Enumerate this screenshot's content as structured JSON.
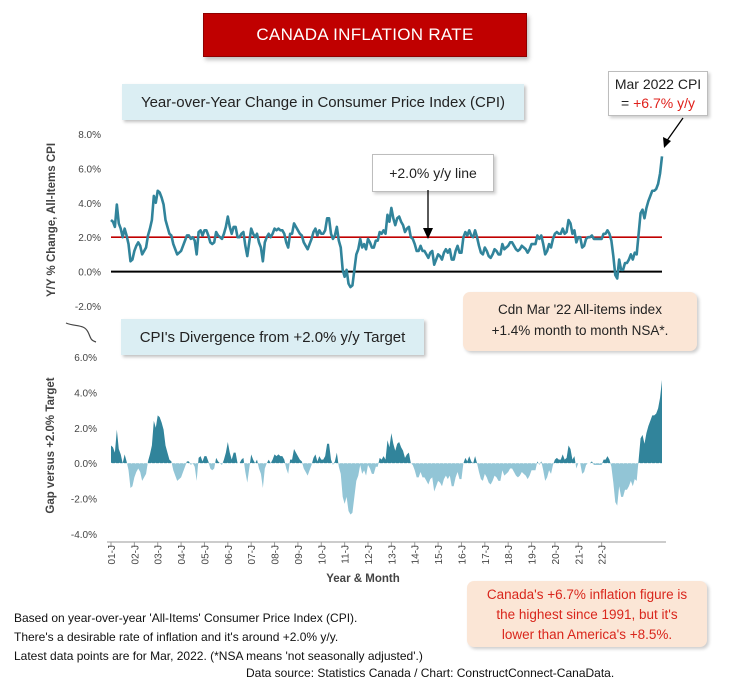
{
  "title": "CANADA INFLATION RATE",
  "top_panel_title": "Year-over-Year Change in Consumer Price Index (CPI)",
  "bottom_panel_title": "CPI's Divergence from +2.0% y/y Target",
  "callout_latest": {
    "line1": "Mar 2022 CPI",
    "prefix": "= ",
    "value": "+6.7% y/y"
  },
  "callout_line": "+2.0% y/y line",
  "note_mom": {
    "line1": "Cdn Mar '22 All-items index",
    "line2": "+1.4% month to month NSA*."
  },
  "note_highest": {
    "line1": "Canada's +6.7% inflation figure is",
    "line2": "the highest since 1991, but it's",
    "line3": "lower than America's +8.5%."
  },
  "footnotes": [
    "Based on year-over-year 'All-Items' Consumer Price Index (CPI).",
    "There's a desirable rate of inflation and it's around +2.0% y/y.",
    "Latest data points are for Mar, 2022. (*NSA means 'not seasonally adjusted'.)"
  ],
  "source": "Data source: Statistics Canada / Chart: ConstructConnect-CanaData.",
  "colors": {
    "line": "#31849b",
    "target": "#c00000",
    "fill": "#31849b",
    "fill_negative": "#92c5d6",
    "title_bg": "#c00000"
  },
  "chart_data": [
    {
      "type": "line",
      "ylabel": "Y/Y % Change, All-Items CPI",
      "ylim": [
        -2,
        8
      ],
      "yticks": [
        "-2.0%",
        "0.0%",
        "2.0%",
        "4.0%",
        "6.0%",
        "8.0%"
      ],
      "target_line": 2.0,
      "x_start": "2001-01",
      "x_end": "2022-03",
      "series": [
        {
          "values": [
            3.0,
            2.9,
            2.6,
            3.9,
            2.8,
            2.5,
            2.0,
            2.5,
            2.1,
            1.6,
            0.6,
            0.7,
            1.2,
            1.5,
            1.7,
            1.5,
            1.0,
            1.2,
            1.4,
            2.1,
            2.5,
            3.0,
            4.4,
            4.0,
            4.7,
            4.6,
            4.3,
            3.9,
            3.0,
            2.6,
            2.2,
            2.1,
            1.6,
            1.3,
            1.0,
            1.1,
            1.2,
            1.5,
            1.8,
            2.1,
            2.1,
            1.9,
            2.0,
            1.8,
            1.0,
            2.3,
            2.4,
            2.1,
            2.4,
            2.4,
            2.1,
            1.7,
            1.6,
            1.7,
            2.3,
            2.1,
            2.0,
            1.9,
            2.2,
            2.6,
            3.2,
            2.6,
            2.2,
            2.6,
            2.6,
            2.0,
            2.0,
            2.2,
            2.3,
            1.5,
            0.9,
            1.7,
            2.5,
            2.2,
            2.0,
            2.2,
            1.7,
            1.4,
            0.6,
            1.7,
            2.0,
            2.2,
            2.0,
            2.2,
            2.5,
            2.4,
            2.5,
            2.4,
            2.4,
            2.2,
            1.7,
            1.4,
            2.2,
            2.2,
            2.8,
            2.6,
            2.4,
            2.2,
            2.1,
            1.7,
            1.5,
            1.3,
            1.6,
            1.9,
            2.3,
            2.5,
            2.1,
            2.4,
            2.2,
            2.2,
            2.4,
            3.1,
            3.1,
            2.2,
            1.9,
            2.1,
            2.6,
            1.8,
            1.4,
            0.1,
            -0.3,
            0.1,
            -0.7,
            -0.9,
            -0.8,
            0.1,
            1.0,
            1.3,
            1.9,
            1.4,
            1.6,
            1.3,
            1.9,
            1.7,
            1.4,
            1.4,
            1.8,
            1.8,
            2.3,
            2.2,
            2.4,
            2.2,
            3.3,
            2.9,
            3.7,
            3.1,
            2.7,
            3.1,
            3.2,
            2.9,
            2.7,
            2.3,
            2.5,
            2.6,
            2.0,
            1.9,
            1.6,
            1.2,
            1.2,
            1.5,
            1.2,
            1.2,
            1.0,
            0.8,
            1.1,
            1.2,
            0.4,
            0.7,
            1.0,
            0.9,
            0.7,
            1.1,
            1.3,
            1.1,
            1.3,
            0.7,
            0.7,
            1.2,
            1.5,
            1.1,
            1.1,
            2.0,
            2.3,
            2.1,
            2.4,
            2.1,
            2.0,
            2.4,
            2.0,
            1.5,
            1.1,
            1.0,
            1.4,
            1.2,
            0.9,
            0.8,
            1.0,
            1.3,
            1.2,
            1.0,
            1.0,
            1.6,
            1.3,
            1.4,
            1.5,
            1.7,
            1.7,
            1.5,
            1.3,
            1.2,
            1.3,
            1.5,
            1.4,
            1.3,
            1.1,
            1.3,
            1.6,
            1.6,
            1.6,
            2.1,
            1.9,
            2.1,
            1.6,
            1.0,
            1.2,
            1.6,
            1.4,
            1.9,
            2.2,
            2.3,
            2.2,
            2.2,
            2.5,
            2.2,
            2.3,
            3.0,
            2.8,
            2.2,
            2.4,
            1.7,
            2.0,
            2.0,
            1.4,
            1.5,
            1.9,
            2.0,
            2.0,
            2.1,
            1.9,
            1.9,
            1.9,
            1.9,
            1.9,
            2.2,
            2.2,
            2.4,
            2.2,
            1.8,
            0.9,
            -0.2,
            -0.4,
            0.7,
            0.1,
            0.1,
            0.5,
            0.5,
            0.7,
            1.0,
            0.7,
            1.1,
            1.0,
            2.2,
            3.4,
            3.6,
            3.1,
            3.7,
            4.1,
            4.4,
            4.7,
            4.7,
            4.8,
            5.1,
            5.7,
            6.7
          ]
        }
      ]
    },
    {
      "type": "area",
      "ylabel": "Gap versus +2.0% Target",
      "xlabel": "Year & Month",
      "ylim": [
        -4,
        6
      ],
      "yticks": [
        "-4.0%",
        "-2.0%",
        "0.0%",
        "2.0%",
        "4.0%",
        "6.0%"
      ],
      "series_derivation": "yoy_change_minus_2.0",
      "categories": [
        "01-J",
        "02-J",
        "03-J",
        "04-J",
        "05-J",
        "06-J",
        "07-J",
        "08-J",
        "09-J",
        "10-J",
        "11-J",
        "12-J",
        "13-J",
        "14-J",
        "15-J",
        "16-J",
        "17-J",
        "18-J",
        "19-J",
        "20-J",
        "21-J",
        "22-J"
      ]
    }
  ]
}
